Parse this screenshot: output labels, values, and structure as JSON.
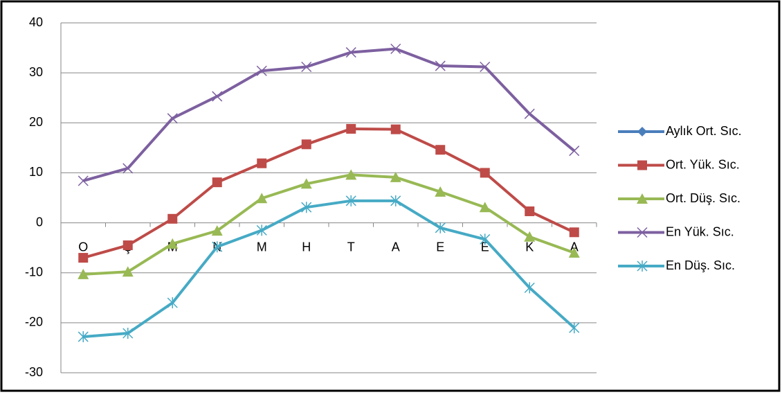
{
  "chart_data": {
    "type": "line",
    "categories": [
      "O",
      "Ş",
      "M",
      "N",
      "M",
      "H",
      "T",
      "A",
      "E",
      "E",
      "K",
      "A"
    ],
    "ylim": [
      -30,
      40
    ],
    "yticks": [
      -30,
      -20,
      -10,
      0,
      10,
      20,
      30,
      40
    ],
    "grid": true,
    "legend": "right",
    "series": [
      {
        "name": "Aylık Ort. Sıc.",
        "color": "#4a7ebb",
        "marker": "diamond",
        "values": [
          null,
          null,
          null,
          null,
          null,
          null,
          null,
          null,
          null,
          null,
          null,
          null
        ]
      },
      {
        "name": "Ort. Yük. Sıc.",
        "color": "#be4b48",
        "marker": "square",
        "values": [
          -7.0,
          -4.5,
          0.8,
          8.1,
          11.9,
          15.7,
          18.8,
          18.7,
          14.6,
          10.0,
          2.3,
          -1.9
        ]
      },
      {
        "name": "Ort. Düş. Sıc.",
        "color": "#98b954",
        "marker": "triangle",
        "values": [
          -10.3,
          -9.8,
          -4.2,
          -1.6,
          4.9,
          7.8,
          9.6,
          9.1,
          6.2,
          3.1,
          -2.8,
          -6.0
        ]
      },
      {
        "name": "En Yük. Sıc.",
        "color": "#7d60a0",
        "marker": "x",
        "values": [
          8.4,
          10.9,
          20.9,
          25.3,
          30.4,
          31.2,
          34.1,
          34.8,
          31.4,
          31.2,
          21.8,
          14.4
        ]
      },
      {
        "name": "En Düş. Sıc.",
        "color": "#46aac5",
        "marker": "star",
        "values": [
          -22.8,
          -22.1,
          -16.0,
          -4.8,
          -1.5,
          3.1,
          4.4,
          4.4,
          -1.0,
          -3.3,
          -13.0,
          -21.0
        ]
      }
    ]
  }
}
